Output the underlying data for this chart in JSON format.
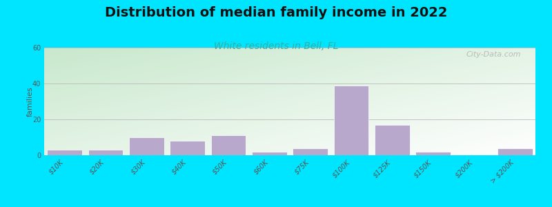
{
  "title": "Distribution of median family income in 2022",
  "subtitle": "White residents in Bell, FL",
  "ylabel": "families",
  "categories": [
    "$10K",
    "$20K",
    "$30K",
    "$40K",
    "$50K",
    "$60K",
    "$75K",
    "$100K",
    "$125K",
    "$150K",
    "$200K",
    "> $200K"
  ],
  "values": [
    3,
    3,
    10,
    8,
    11,
    2,
    4,
    39,
    17,
    2,
    0,
    4
  ],
  "bar_color": "#b8a8cc",
  "bar_edge_color": "#ffffff",
  "ylim": [
    0,
    60
  ],
  "yticks": [
    0,
    20,
    40,
    60
  ],
  "background_outer": "#00e5ff",
  "bg_color_bottom_left": "#c8e8cc",
  "bg_color_top_right": "#ffffff",
  "title_fontsize": 14,
  "subtitle_fontsize": 10,
  "subtitle_color": "#3aada0",
  "watermark": "City-Data.com",
  "grid_color": "#bbbbbb",
  "ylabel_fontsize": 8,
  "tick_fontsize": 7
}
